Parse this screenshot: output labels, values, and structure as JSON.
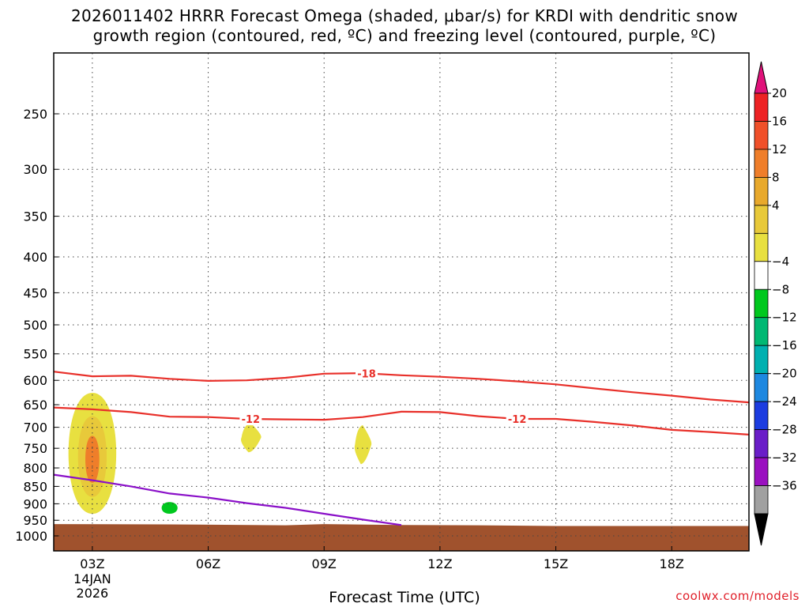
{
  "title_line1": "2026011402 HRRR Forecast Omega (shaded, μbar/s) for KRDI with dendritic snow",
  "title_line2": "growth region (contoured, red, ºC) and freezing level (contoured, purple, ºC)",
  "credit": "coolwx.com/models",
  "chart_data": {
    "type": "cross-section",
    "title": "2026011402 HRRR Forecast Omega (shaded, μbar/s) for KRDI with dendritic snow growth region (contoured, red, ºC) and freezing level (contoured, purple, ºC)",
    "xlabel": "Forecast Time (UTC)",
    "ylabel": "",
    "x_ticks": [
      {
        "t": 3,
        "label": "03Z",
        "sub1": "14JAN",
        "sub2": "2026"
      },
      {
        "t": 6,
        "label": "06Z"
      },
      {
        "t": 9,
        "label": "09Z"
      },
      {
        "t": 12,
        "label": "12Z"
      },
      {
        "t": 15,
        "label": "15Z"
      },
      {
        "t": 18,
        "label": "18Z"
      }
    ],
    "xlim": [
      2,
      20
    ],
    "y_ticks": [
      250,
      300,
      350,
      400,
      450,
      500,
      550,
      600,
      650,
      700,
      750,
      800,
      850,
      900,
      950,
      1000
    ],
    "ylim_hpa": [
      200,
      1030
    ],
    "y_scale": "log-pressure",
    "grid": "dotted",
    "colorbar": {
      "labels": [
        "20",
        "16",
        "12",
        "8",
        "4",
        "-4",
        "-8",
        "-12",
        "-16",
        "-20",
        "-24",
        "-28",
        "-32",
        "-36"
      ],
      "colors": [
        "#ed2224",
        "#f0502a",
        "#ef7e2a",
        "#e8a92c",
        "#e8c93a",
        "#e8e040",
        "#ffffff",
        "#00c81e",
        "#00b873",
        "#00b0b0",
        "#1e88e0",
        "#1c3ce0",
        "#6a1ec8",
        "#9a10c0",
        "#a0a0a0"
      ],
      "top_arrow": "#e0127a",
      "bottom_arrow": "#000000"
    },
    "contours": [
      {
        "name": "-18",
        "color": "#e8302a",
        "points": [
          [
            2,
            583
          ],
          [
            3,
            592
          ],
          [
            4,
            591
          ],
          [
            5,
            597
          ],
          [
            6,
            601
          ],
          [
            7,
            600
          ],
          [
            8,
            595
          ],
          [
            9,
            587
          ],
          [
            10,
            586
          ],
          [
            11,
            590
          ],
          [
            12,
            593
          ],
          [
            13,
            597
          ],
          [
            14,
            602
          ],
          [
            15,
            608
          ],
          [
            16,
            616
          ],
          [
            17,
            624
          ],
          [
            18,
            631
          ],
          [
            19,
            639
          ],
          [
            20,
            645
          ]
        ],
        "label_t": 10.1
      },
      {
        "name": "-12",
        "color": "#e8302a",
        "points": [
          [
            2,
            656
          ],
          [
            3,
            660
          ],
          [
            4,
            666
          ],
          [
            5,
            676
          ],
          [
            6,
            677
          ],
          [
            7,
            681
          ],
          [
            8,
            682
          ],
          [
            9,
            683
          ],
          [
            10,
            677
          ],
          [
            11,
            665
          ],
          [
            12,
            666
          ],
          [
            13,
            675
          ],
          [
            14,
            681
          ],
          [
            15,
            681
          ],
          [
            16,
            688
          ],
          [
            17,
            696
          ],
          [
            18,
            706
          ],
          [
            19,
            711
          ],
          [
            20,
            717
          ]
        ],
        "label_t_list": [
          7.1,
          14.0
        ]
      },
      {
        "name": "0",
        "color": "#8a10c8",
        "points": [
          [
            2,
            818
          ],
          [
            3,
            833
          ],
          [
            4,
            850
          ],
          [
            5,
            870
          ],
          [
            6,
            882
          ],
          [
            7,
            898
          ],
          [
            8,
            912
          ],
          [
            9,
            930
          ],
          [
            10,
            948
          ],
          [
            11,
            965
          ]
        ]
      }
    ],
    "omega_features": [
      {
        "t": 3,
        "p": 775,
        "level": 4,
        "dt": 0.75,
        "p_top": 625,
        "p_bot": 930
      },
      {
        "t": 3,
        "p": 780,
        "level": 8,
        "dt": 0.45,
        "p_top": 675,
        "p_bot": 880
      },
      {
        "t": 3,
        "p": 780,
        "level": 12,
        "dt": 0.22,
        "p_top": 720,
        "p_bot": 840
      },
      {
        "t": 7.1,
        "p": 725,
        "level": 4,
        "dt": 0.3,
        "p_top": 690,
        "p_bot": 760
      },
      {
        "t": 10.0,
        "p": 745,
        "level": 4,
        "dt": 0.25,
        "p_top": 695,
        "p_bot": 790
      },
      {
        "t": 5.0,
        "p": 910,
        "level": -4,
        "dt": 0.25,
        "p_top": 895,
        "p_bot": 930
      }
    ],
    "terrain": {
      "color": "#a0522d",
      "points": [
        [
          2,
          962
        ],
        [
          5,
          963
        ],
        [
          8,
          966
        ],
        [
          9,
          962
        ],
        [
          11,
          965
        ],
        [
          13,
          966
        ],
        [
          15,
          968
        ],
        [
          17,
          968
        ],
        [
          20,
          968
        ]
      ]
    }
  }
}
